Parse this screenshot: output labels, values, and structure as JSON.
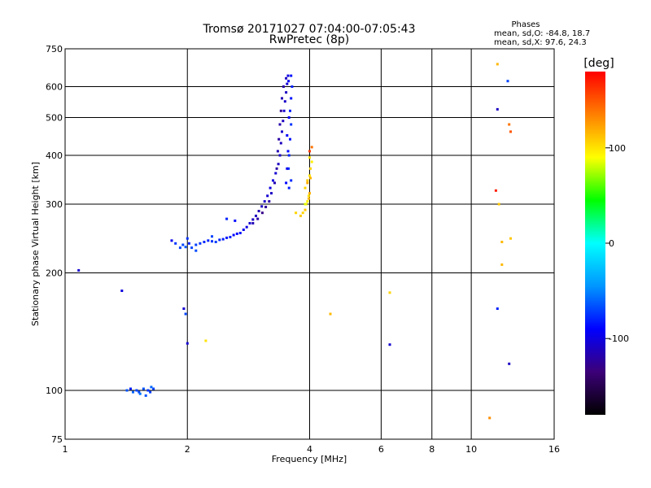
{
  "chart_data": {
    "type": "scatter",
    "title": "Tromsø 20171027 07:04:00-07:05:43",
    "subtitle": "RwPretec (8p)",
    "xlabel": "Frequency [MHz]",
    "ylabel": "Stationary phase Virtual Height [km]",
    "x_scale": "log",
    "y_scale": "log",
    "xlim": [
      1,
      16
    ],
    "ylim": [
      75,
      750
    ],
    "x_ticks": [
      1,
      2,
      4,
      6,
      8,
      10,
      16
    ],
    "y_ticks": [
      75,
      100,
      200,
      300,
      400,
      500,
      600,
      750
    ],
    "grid": true,
    "legend_box": {
      "title": "Phases",
      "lines": [
        "mean, sd,O: -84.8, 18.7",
        "mean, sd,X:  97.6, 24.3"
      ]
    },
    "colorbar": {
      "label": "[deg]",
      "ticks": [
        100,
        0,
        -100
      ],
      "range": [
        -180,
        180
      ],
      "colors": [
        "#000000",
        "#3c0078",
        "#0000ff",
        "#0096ff",
        "#00ffff",
        "#00ff00",
        "#ffff00",
        "#ff8000",
        "#ff0000"
      ]
    },
    "series": [
      {
        "trace": "o_mode_F_region",
        "points": [
          [
            1.83,
            242,
            -95
          ],
          [
            1.87,
            238,
            -75
          ],
          [
            1.92,
            232,
            -70
          ],
          [
            1.95,
            236,
            -70
          ],
          [
            1.98,
            233,
            -65
          ],
          [
            2.02,
            238,
            -80
          ],
          [
            2.05,
            232,
            -70
          ],
          [
            2.1,
            236,
            -72
          ],
          [
            2.15,
            238,
            -75
          ],
          [
            2.2,
            240,
            -78
          ],
          [
            2.25,
            242,
            -80
          ],
          [
            2.3,
            241,
            -75
          ],
          [
            2.35,
            240,
            -72
          ],
          [
            2.4,
            243,
            -80
          ],
          [
            2.45,
            244,
            -82
          ],
          [
            2.5,
            246,
            -85
          ],
          [
            2.55,
            247,
            -80
          ],
          [
            2.6,
            250,
            -88
          ],
          [
            2.65,
            252,
            -90
          ],
          [
            2.7,
            253,
            -85
          ],
          [
            2.75,
            258,
            -95
          ],
          [
            2.8,
            262,
            -100
          ],
          [
            2.85,
            268,
            -105
          ],
          [
            2.9,
            274,
            -110
          ],
          [
            2.95,
            280,
            -112
          ],
          [
            3.0,
            288,
            -115
          ],
          [
            3.05,
            296,
            -110
          ],
          [
            3.1,
            305,
            -108
          ],
          [
            3.15,
            315,
            -105
          ],
          [
            3.2,
            330,
            -100
          ],
          [
            3.25,
            345,
            -100
          ],
          [
            3.3,
            360,
            -105
          ],
          [
            3.35,
            380,
            -110
          ],
          [
            3.38,
            400,
            -108
          ],
          [
            3.4,
            430,
            -112
          ],
          [
            3.42,
            460,
            -108
          ],
          [
            3.44,
            490,
            -110
          ],
          [
            3.46,
            520,
            -105
          ],
          [
            3.48,
            550,
            -108
          ],
          [
            3.5,
            580,
            -110
          ],
          [
            3.52,
            610,
            -105
          ],
          [
            3.54,
            640,
            -100
          ],
          [
            3.5,
            630,
            -110
          ],
          [
            3.45,
            600,
            -120
          ],
          [
            3.42,
            560,
            -115
          ],
          [
            3.4,
            520,
            -125
          ],
          [
            3.38,
            480,
            -118
          ],
          [
            3.36,
            440,
            -120
          ],
          [
            3.34,
            410,
            -115
          ],
          [
            3.32,
            370,
            -120
          ],
          [
            3.28,
            340,
            -115
          ],
          [
            3.22,
            320,
            -110
          ],
          [
            3.18,
            305,
            -120
          ],
          [
            3.12,
            295,
            -125
          ],
          [
            3.06,
            285,
            -130
          ],
          [
            2.98,
            275,
            -120
          ],
          [
            2.9,
            268,
            -115
          ],
          [
            3.6,
            640,
            -85
          ],
          [
            3.62,
            600,
            -80
          ],
          [
            3.6,
            560,
            -85
          ],
          [
            3.58,
            520,
            -80
          ],
          [
            3.6,
            480,
            -75
          ],
          [
            3.58,
            440,
            -85
          ],
          [
            3.56,
            400,
            -80
          ],
          [
            3.55,
            370,
            -75
          ],
          [
            3.6,
            345,
            -78
          ],
          [
            3.56,
            330,
            -82
          ],
          [
            3.5,
            340,
            -90
          ],
          [
            3.52,
            370,
            -95
          ],
          [
            3.54,
            410,
            -88
          ],
          [
            3.52,
            450,
            -92
          ],
          [
            3.56,
            500,
            -90
          ],
          [
            3.55,
            620,
            -95
          ],
          [
            2.62,
            272,
            -88
          ],
          [
            2.5,
            275,
            -80
          ],
          [
            2.3,
            248,
            -70
          ],
          [
            2.1,
            228,
            -68
          ],
          [
            2.0,
            245,
            -75
          ]
        ]
      },
      {
        "trace": "x_mode_F_region",
        "points": [
          [
            3.85,
            285,
            105
          ],
          [
            3.9,
            290,
            110
          ],
          [
            3.92,
            300,
            100
          ],
          [
            3.95,
            305,
            95
          ],
          [
            3.98,
            315,
            100
          ],
          [
            3.9,
            330,
            105
          ],
          [
            3.95,
            345,
            110
          ],
          [
            4.0,
            355,
            100
          ],
          [
            4.02,
            370,
            105
          ],
          [
            4.05,
            385,
            95
          ],
          [
            4.0,
            395,
            100
          ],
          [
            3.95,
            340,
            120
          ],
          [
            3.98,
            310,
            115
          ],
          [
            4.0,
            320,
            118
          ],
          [
            4.02,
            350,
            115
          ],
          [
            4.05,
            420,
            140
          ],
          [
            3.8,
            280,
            110
          ],
          [
            3.7,
            285,
            105
          ],
          [
            4.0,
            410,
            160
          ],
          [
            3.9,
            300,
            85
          ]
        ]
      },
      {
        "trace": "e_region",
        "points": [
          [
            1.42,
            100,
            -65
          ],
          [
            1.47,
            99,
            -60
          ],
          [
            1.5,
            100,
            -70
          ],
          [
            1.53,
            98,
            -55
          ],
          [
            1.56,
            101,
            -65
          ],
          [
            1.6,
            100,
            -75
          ],
          [
            1.63,
            102,
            -60
          ],
          [
            1.65,
            101,
            -70
          ],
          [
            1.58,
            97,
            -65
          ],
          [
            1.45,
            101,
            -80
          ],
          [
            1.52,
            99,
            -68
          ],
          [
            1.62,
            99,
            -72
          ]
        ]
      },
      {
        "trace": "scattered",
        "points": [
          [
            1.08,
            203,
            -105
          ],
          [
            1.38,
            180,
            -100
          ],
          [
            1.96,
            162,
            -105
          ],
          [
            1.98,
            157,
            -70
          ],
          [
            2.0,
            132,
            -105
          ],
          [
            2.22,
            134,
            100
          ],
          [
            4.5,
            157,
            115
          ],
          [
            6.3,
            178,
            105
          ],
          [
            6.3,
            131,
            -105
          ],
          [
            11.6,
            685,
            115
          ],
          [
            12.3,
            620,
            -70
          ],
          [
            11.6,
            525,
            -110
          ],
          [
            12.4,
            480,
            140
          ],
          [
            12.5,
            460,
            150
          ],
          [
            11.5,
            325,
            170
          ],
          [
            11.7,
            300,
            110
          ],
          [
            11.9,
            240,
            115
          ],
          [
            12.5,
            245,
            110
          ],
          [
            11.9,
            210,
            115
          ],
          [
            11.6,
            162,
            -80
          ],
          [
            12.4,
            117,
            -110
          ],
          [
            11.1,
            85,
            130
          ]
        ]
      }
    ]
  }
}
